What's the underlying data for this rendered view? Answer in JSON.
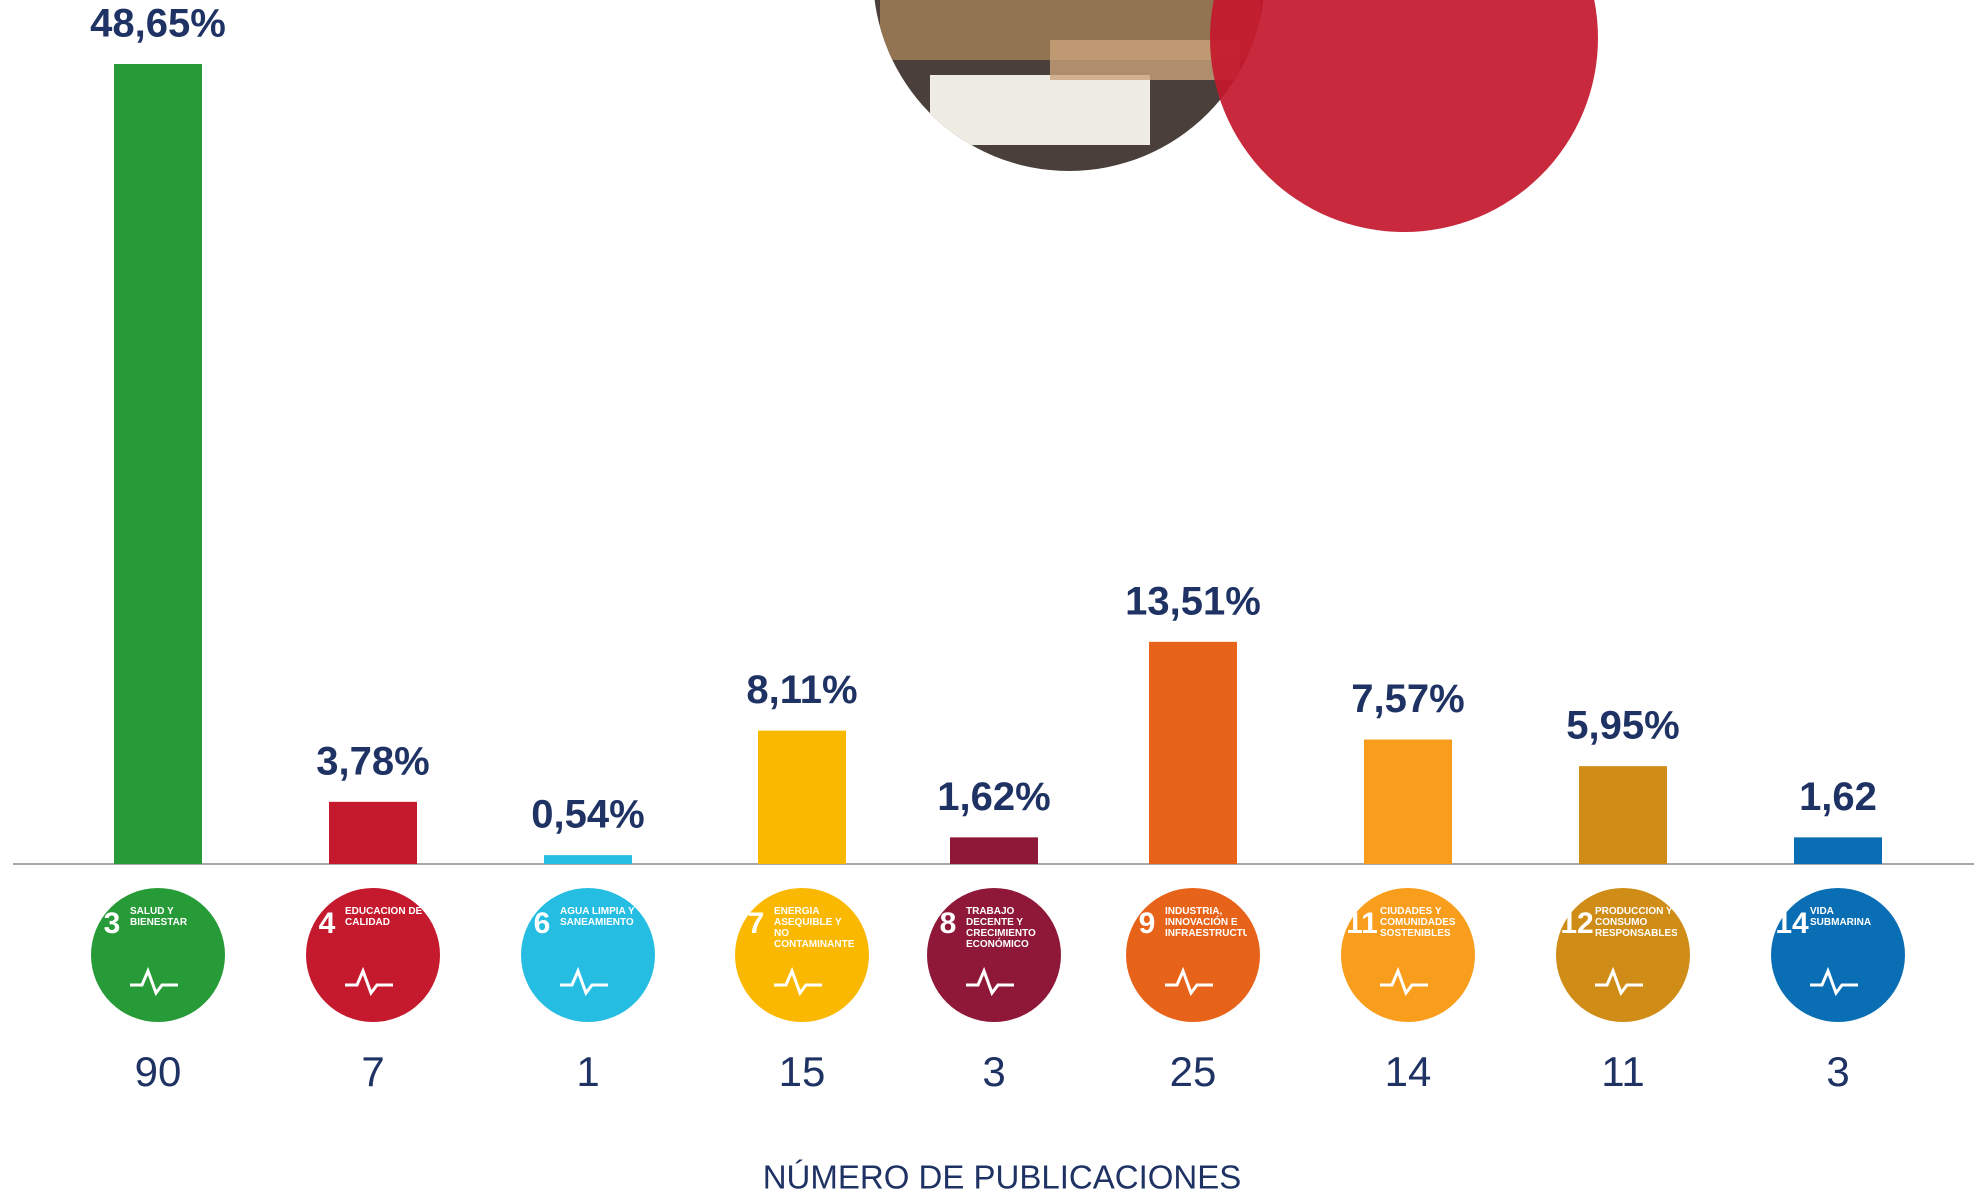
{
  "chart_data": {
    "type": "bar",
    "goal_numbers": [
      "3",
      "4",
      "6",
      "7",
      "8",
      "9",
      "11",
      "12",
      "14"
    ],
    "categories": [
      "SALUD Y BIENESTAR",
      "EDUCACIÓN DE CALIDAD",
      "AGUA LIMPIA Y SANEAMIENTO",
      "ENERGÍA ASEQUIBLE Y NO CONTAMINANTE",
      "TRABAJO DECENTE Y CRECIMIENTO ECONÓMICO",
      "INDUSTRIA, INNOVACIÓN E INFRAESTRUCTURA",
      "CIUDADES Y COMUNIDADES SOSTENIBLES",
      "PRODUCCIÓN Y CONSUMO RESPONSABLES",
      "VIDA SUBMARINA"
    ],
    "values": [
      48.65,
      3.78,
      0.54,
      8.11,
      1.62,
      13.51,
      7.57,
      5.95,
      1.62
    ],
    "value_labels": [
      "48,65%",
      "3,78%",
      "0,54%",
      "8,11%",
      "1,62%",
      "13,51%",
      "7,57%",
      "5,95%",
      "1,62"
    ],
    "counts": [
      90,
      7,
      1,
      15,
      3,
      25,
      14,
      11,
      3
    ],
    "colors": [
      "#279b37",
      "#c5192d",
      "#26bde2",
      "#fbb800",
      "#8f1838",
      "#e8631a",
      "#f99d1c",
      "#cf8d18",
      "#0a6eb4"
    ],
    "x_label": "NÚMERO DE PUBLICACIONES"
  }
}
